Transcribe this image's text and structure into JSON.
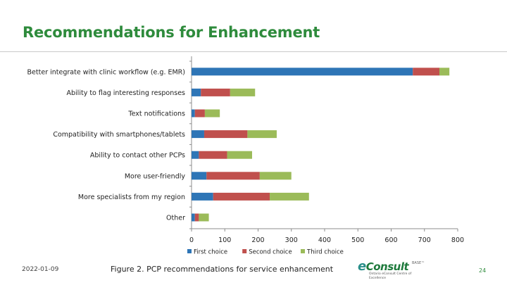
{
  "slide": {
    "title": "Recommendations for Enhancement",
    "date": "2022-01-09",
    "caption": "Figure 2. PCP recommendations for service enhancement",
    "page_number": "24",
    "logo": {
      "name_prefix": "e",
      "name_rest": "Consult",
      "badge": "BASE™",
      "subtitle": "Ontario eConsult Centre of Excellence"
    }
  },
  "chart_data": {
    "type": "bar",
    "orientation": "horizontal",
    "stacked": true,
    "categories": [
      "Better integrate with clinic workflow (e.g. EMR)",
      "Ability to flag interesting responses",
      "Text notifications",
      "Compatibility with smartphones/tablets",
      "Ability to contact other PCPs",
      "More user-friendly",
      "More specialists from my region",
      "Other"
    ],
    "series": [
      {
        "name": "First choice",
        "color": "#2e75b6",
        "values": [
          665,
          28,
          10,
          38,
          22,
          45,
          65,
          10
        ]
      },
      {
        "name": "Second choice",
        "color": "#c0504d",
        "values": [
          80,
          88,
          30,
          130,
          85,
          160,
          170,
          12
        ]
      },
      {
        "name": "Third choice",
        "color": "#9bbb59",
        "values": [
          30,
          75,
          45,
          88,
          75,
          95,
          118,
          30
        ]
      }
    ],
    "xlim": [
      0,
      800
    ],
    "xticks": [
      "0",
      "100",
      "200",
      "300",
      "400",
      "500",
      "600",
      "700",
      "800"
    ],
    "xlabel": "",
    "ylabel": "",
    "grid": false,
    "legend_position": "bottom"
  }
}
